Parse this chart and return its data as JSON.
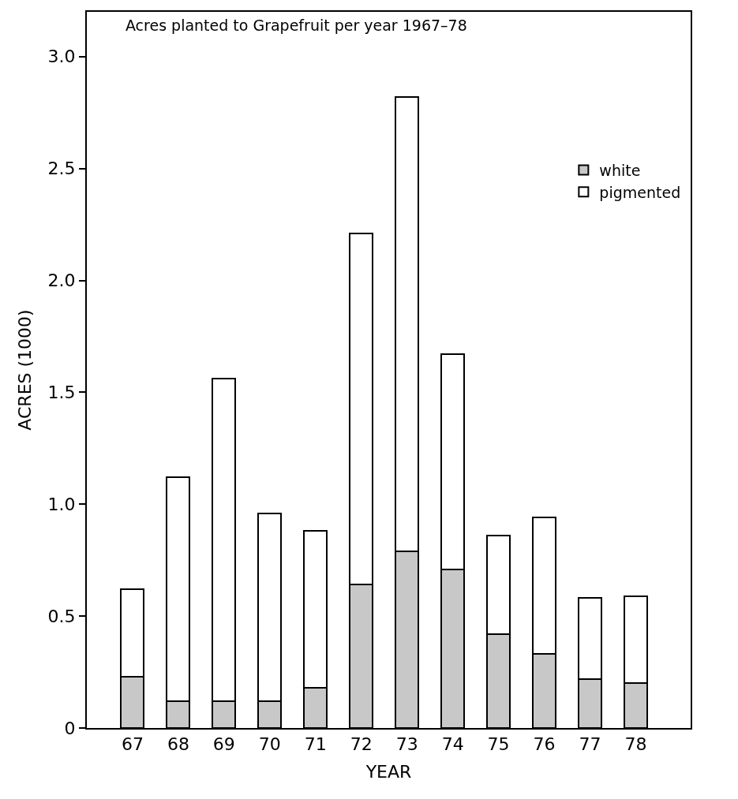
{
  "chart_data": {
    "type": "bar",
    "title": "Acres planted to Grapefruit per year 1967–78",
    "xlabel": "YEAR",
    "ylabel": "ACRES (1000)",
    "categories": [
      "67",
      "68",
      "69",
      "70",
      "71",
      "72",
      "73",
      "74",
      "75",
      "76",
      "77",
      "78"
    ],
    "stacked": true,
    "series": [
      {
        "name": "white",
        "color": "#c8c8c8",
        "values": [
          0.23,
          0.12,
          0.12,
          0.12,
          0.18,
          0.64,
          0.79,
          0.71,
          0.42,
          0.33,
          0.22,
          0.2
        ]
      },
      {
        "name": "pigmented",
        "color": "#ffffff",
        "values": [
          0.39,
          1.0,
          1.44,
          0.84,
          0.7,
          1.57,
          2.03,
          0.96,
          0.44,
          0.61,
          0.36,
          0.39
        ]
      }
    ],
    "ylim": [
      0,
      3.2
    ],
    "yticks": [
      0,
      {
        "value": 0.5,
        "label": "0.5"
      },
      {
        "value": 1,
        "label": "1.0"
      },
      {
        "value": 1.5,
        "label": "1.5"
      },
      {
        "value": 2,
        "label": "2.0"
      },
      {
        "value": 2.5,
        "label": "2.5"
      },
      {
        "value": 3,
        "label": "3.0"
      }
    ],
    "grid": false,
    "legend": "top right"
  }
}
